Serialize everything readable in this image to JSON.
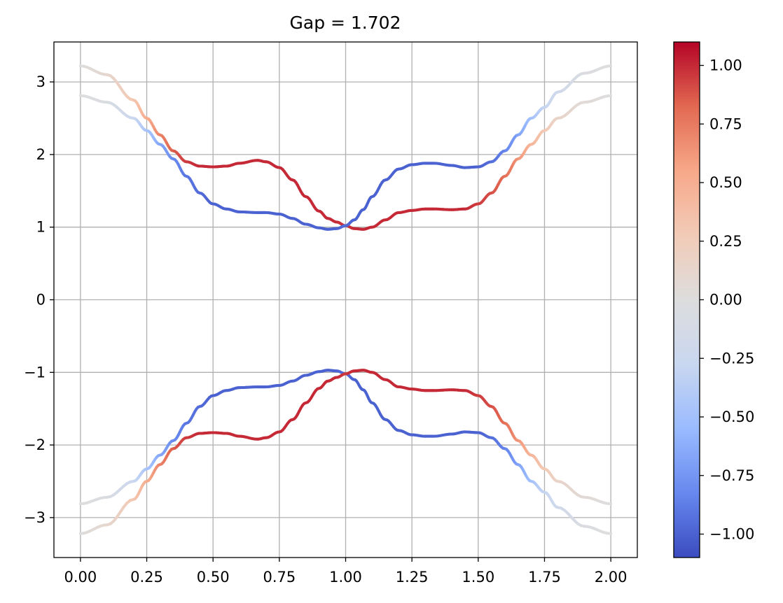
{
  "chart_data": {
    "type": "line",
    "title": "Gap = 1.702",
    "xlabel": "",
    "ylabel": "",
    "xlim": [
      -0.1,
      2.1
    ],
    "ylim": [
      -3.55,
      3.55
    ],
    "x_ticks": [
      0.0,
      0.25,
      0.5,
      0.75,
      1.0,
      1.25,
      1.5,
      1.75,
      2.0
    ],
    "x_tick_labels": [
      "0.00",
      "0.25",
      "0.50",
      "0.75",
      "1.00",
      "1.25",
      "1.50",
      "1.75",
      "2.00"
    ],
    "y_ticks": [
      3,
      2,
      1,
      0,
      -1,
      -2,
      -3
    ],
    "y_tick_labels": [
      "3",
      "2",
      "1",
      "0",
      "−1",
      "−2",
      "−3"
    ],
    "grid": true,
    "colormap": "coolwarm",
    "colorbar": {
      "range": [
        -1.1,
        1.1
      ],
      "ticks": [
        1.0,
        0.75,
        0.5,
        0.25,
        0.0,
        -0.25,
        -0.5,
        -0.75,
        -1.0
      ],
      "tick_labels": [
        "1.00",
        "0.75",
        "0.50",
        "0.25",
        "0.00",
        "−0.25",
        "−0.50",
        "−0.75",
        "−1.00"
      ],
      "colors": [
        "#3b4cc0",
        "#6788ee",
        "#9abbff",
        "#c9d7f0",
        "#dddddd",
        "#f2cbb7",
        "#f7a889",
        "#e26952",
        "#b40426"
      ]
    },
    "series": [
      {
        "x": [
          0.0,
          0.1,
          0.2,
          0.25,
          0.3,
          0.35,
          0.4,
          0.45,
          0.5,
          0.55,
          0.6,
          0.667,
          0.7,
          0.75,
          0.8,
          0.85,
          0.9,
          0.933,
          0.966,
          1.0,
          1.033,
          1.066,
          1.1,
          1.15,
          1.2,
          1.25,
          1.3,
          1.333,
          1.4,
          1.45,
          1.5,
          1.55,
          1.6,
          1.65,
          1.7,
          1.75,
          1.8,
          1.9,
          2.0
        ],
        "y": [
          3.22,
          3.1,
          2.75,
          2.5,
          2.27,
          2.05,
          1.9,
          1.84,
          1.83,
          1.84,
          1.88,
          1.92,
          1.9,
          1.82,
          1.65,
          1.42,
          1.22,
          1.12,
          1.07,
          1.02,
          0.98,
          0.97,
          1.0,
          1.1,
          1.2,
          1.23,
          1.25,
          1.25,
          1.24,
          1.25,
          1.32,
          1.47,
          1.7,
          1.94,
          2.14,
          2.33,
          2.5,
          2.72,
          2.81
        ],
        "c": [
          0.0,
          0.1,
          0.3,
          0.5,
          0.7,
          0.85,
          0.95,
          1.0,
          1.0,
          1.0,
          1.0,
          1.0,
          1.0,
          1.0,
          1.0,
          1.0,
          1.0,
          1.0,
          1.0,
          0.95,
          1.0,
          1.0,
          1.0,
          1.0,
          1.0,
          1.0,
          1.0,
          1.0,
          1.0,
          1.0,
          0.95,
          0.9,
          0.8,
          0.65,
          0.45,
          0.3,
          0.15,
          0.05,
          0.0
        ]
      },
      {
        "x": [
          0.0,
          0.1,
          0.2,
          0.25,
          0.3,
          0.35,
          0.4,
          0.45,
          0.5,
          0.55,
          0.6,
          0.667,
          0.7,
          0.75,
          0.8,
          0.85,
          0.9,
          0.933,
          0.966,
          1.0,
          1.033,
          1.066,
          1.1,
          1.15,
          1.2,
          1.25,
          1.3,
          1.333,
          1.4,
          1.45,
          1.5,
          1.55,
          1.6,
          1.65,
          1.7,
          1.75,
          1.8,
          1.9,
          2.0
        ],
        "y": [
          2.81,
          2.72,
          2.5,
          2.33,
          2.14,
          1.94,
          1.7,
          1.47,
          1.32,
          1.25,
          1.21,
          1.2,
          1.2,
          1.18,
          1.12,
          1.04,
          0.99,
          0.97,
          0.98,
          1.02,
          1.1,
          1.24,
          1.42,
          1.65,
          1.8,
          1.86,
          1.88,
          1.88,
          1.85,
          1.82,
          1.83,
          1.9,
          2.05,
          2.27,
          2.5,
          2.65,
          2.86,
          3.12,
          3.22
        ],
        "c": [
          0.0,
          -0.05,
          -0.25,
          -0.45,
          -0.65,
          -0.8,
          -0.9,
          -0.95,
          -1.0,
          -1.0,
          -1.0,
          -1.0,
          -1.0,
          -1.0,
          -1.0,
          -1.0,
          -1.0,
          -1.0,
          -1.0,
          -0.95,
          -1.0,
          -1.0,
          -1.0,
          -1.0,
          -1.0,
          -1.0,
          -1.0,
          -1.0,
          -1.0,
          -1.0,
          -1.0,
          -0.95,
          -0.85,
          -0.7,
          -0.5,
          -0.3,
          -0.2,
          -0.05,
          0.0
        ]
      },
      {
        "x": [
          0.0,
          0.1,
          0.2,
          0.25,
          0.3,
          0.35,
          0.4,
          0.45,
          0.5,
          0.55,
          0.6,
          0.667,
          0.7,
          0.75,
          0.8,
          0.85,
          0.9,
          0.933,
          0.966,
          1.0,
          1.033,
          1.066,
          1.1,
          1.15,
          1.2,
          1.25,
          1.3,
          1.333,
          1.4,
          1.45,
          1.5,
          1.55,
          1.6,
          1.65,
          1.7,
          1.75,
          1.8,
          1.9,
          2.0
        ],
        "y": [
          -2.81,
          -2.72,
          -2.5,
          -2.33,
          -2.14,
          -1.94,
          -1.7,
          -1.47,
          -1.32,
          -1.25,
          -1.21,
          -1.2,
          -1.2,
          -1.18,
          -1.12,
          -1.04,
          -0.99,
          -0.97,
          -0.98,
          -1.02,
          -1.1,
          -1.24,
          -1.42,
          -1.65,
          -1.8,
          -1.86,
          -1.88,
          -1.88,
          -1.85,
          -1.82,
          -1.83,
          -1.9,
          -2.05,
          -2.27,
          -2.5,
          -2.65,
          -2.86,
          -3.12,
          -3.22
        ],
        "c": [
          0.0,
          -0.05,
          -0.25,
          -0.45,
          -0.65,
          -0.8,
          -0.9,
          -0.95,
          -1.0,
          -1.0,
          -1.0,
          -1.0,
          -1.0,
          -1.0,
          -1.0,
          -1.0,
          -1.0,
          -1.0,
          -1.0,
          -0.95,
          -1.0,
          -1.0,
          -1.0,
          -1.0,
          -1.0,
          -1.0,
          -1.0,
          -1.0,
          -1.0,
          -1.0,
          -1.0,
          -0.95,
          -0.85,
          -0.7,
          -0.5,
          -0.3,
          -0.2,
          -0.05,
          0.0
        ]
      },
      {
        "x": [
          0.0,
          0.1,
          0.2,
          0.25,
          0.3,
          0.35,
          0.4,
          0.45,
          0.5,
          0.55,
          0.6,
          0.667,
          0.7,
          0.75,
          0.8,
          0.85,
          0.9,
          0.933,
          0.966,
          1.0,
          1.033,
          1.066,
          1.1,
          1.15,
          1.2,
          1.25,
          1.3,
          1.333,
          1.4,
          1.45,
          1.5,
          1.55,
          1.6,
          1.65,
          1.7,
          1.75,
          1.8,
          1.9,
          2.0
        ],
        "y": [
          -3.22,
          -3.1,
          -2.75,
          -2.5,
          -2.27,
          -2.05,
          -1.9,
          -1.84,
          -1.83,
          -1.84,
          -1.88,
          -1.92,
          -1.9,
          -1.82,
          -1.65,
          -1.42,
          -1.22,
          -1.12,
          -1.07,
          -1.02,
          -0.98,
          -0.97,
          -1.0,
          -1.1,
          -1.2,
          -1.23,
          -1.25,
          -1.25,
          -1.24,
          -1.25,
          -1.32,
          -1.47,
          -1.7,
          -1.94,
          -2.14,
          -2.33,
          -2.5,
          -2.72,
          -2.81
        ],
        "c": [
          0.0,
          0.1,
          0.3,
          0.5,
          0.7,
          0.85,
          0.95,
          1.0,
          1.0,
          1.0,
          1.0,
          1.0,
          1.0,
          1.0,
          1.0,
          1.0,
          1.0,
          1.0,
          1.0,
          0.95,
          1.0,
          1.0,
          1.0,
          1.0,
          1.0,
          1.0,
          1.0,
          1.0,
          1.0,
          1.0,
          0.95,
          0.9,
          0.8,
          0.65,
          0.45,
          0.3,
          0.15,
          0.05,
          0.0
        ]
      }
    ]
  }
}
